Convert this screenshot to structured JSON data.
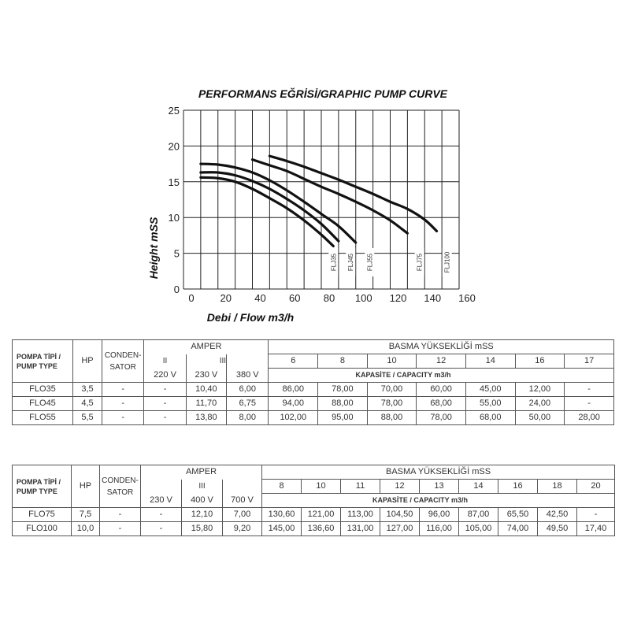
{
  "chart_data": {
    "type": "line",
    "title": "PERFORMANS EĞRİSİ/GRAPHIC PUMP CURVE",
    "xlabel": "Debi / Flow m3/h",
    "ylabel": "Height mSS",
    "xlim": [
      0,
      160
    ],
    "ylim": [
      0,
      25
    ],
    "xticks": [
      "0",
      "20",
      "40",
      "60",
      "80",
      "100",
      "120",
      "140",
      "160"
    ],
    "yticks": [
      "0",
      "5",
      "10",
      "15",
      "20",
      "25"
    ],
    "grid": true,
    "series": [
      {
        "name": "FLJ35",
        "x": [
          10,
          20,
          30,
          40,
          50,
          60,
          70,
          80,
          87
        ],
        "y": [
          15.6,
          15.5,
          15,
          14,
          12.7,
          11.3,
          9.6,
          7.6,
          6.0
        ]
      },
      {
        "name": "FLJ45",
        "x": [
          10,
          20,
          30,
          40,
          50,
          60,
          70,
          80,
          90
        ],
        "y": [
          16.3,
          16.3,
          15.9,
          15.1,
          14,
          12.6,
          11,
          9.1,
          6.7
        ]
      },
      {
        "name": "FLJ55",
        "x": [
          10,
          20,
          30,
          40,
          50,
          60,
          70,
          80,
          90,
          100
        ],
        "y": [
          17.5,
          17.4,
          17,
          16.3,
          15.2,
          13.8,
          12.2,
          10.5,
          8.8,
          6.5
        ]
      },
      {
        "name": "FLJ75",
        "x": [
          40,
          50,
          60,
          70,
          80,
          90,
          100,
          110,
          120,
          130
        ],
        "y": [
          18.1,
          17.3,
          16.5,
          15.4,
          14.3,
          13.3,
          12.2,
          11,
          9.6,
          7.8
        ]
      },
      {
        "name": "FLJ100",
        "x": [
          50,
          60,
          70,
          80,
          90,
          100,
          110,
          120,
          130,
          140,
          147
        ],
        "y": [
          18.6,
          17.9,
          17.1,
          16.2,
          15.3,
          14.3,
          13.3,
          12.2,
          11.2,
          9.7,
          8.1
        ]
      }
    ],
    "curve_labels": [
      "FLJ35",
      "FLJ45",
      "FLJ55",
      "FLJ75",
      "FLJ100"
    ],
    "label_x": [
      87,
      97,
      108,
      137,
      153
    ]
  },
  "table1": {
    "pump_type": [
      "POMPA TİPİ /",
      "PUMP TYPE"
    ],
    "hp": "HP",
    "condensator": [
      "CONDEN-",
      "SATOR"
    ],
    "amper": "AMPER",
    "phase2": "II",
    "phase3": "III",
    "v220": "220 V",
    "v230": "230 V",
    "v380": "380 V",
    "basma": "BASMA YÜKSEKLİĞİ mSS",
    "heights": [
      "6",
      "8",
      "10",
      "12",
      "14",
      "16",
      "17"
    ],
    "capacity": "KAPASİTE  / CAPACITY m3/h",
    "rows": [
      {
        "type": "FLO35",
        "hp": "3,5",
        "cond": "-",
        "a220": "-",
        "a230": "10,40",
        "a380": "6,00",
        "caps": [
          "86,00",
          "78,00",
          "70,00",
          "60,00",
          "45,00",
          "12,00",
          "-"
        ]
      },
      {
        "type": "FLO45",
        "hp": "4,5",
        "cond": "-",
        "a220": "-",
        "a230": "11,70",
        "a380": "6,75",
        "caps": [
          "94,00",
          "88,00",
          "78,00",
          "68,00",
          "55,00",
          "24,00",
          "-"
        ]
      },
      {
        "type": "FLO55",
        "hp": "5,5",
        "cond": "-",
        "a220": "-",
        "a230": "13,80",
        "a380": "8,00",
        "caps": [
          "102,00",
          "95,00",
          "88,00",
          "78,00",
          "68,00",
          "50,00",
          "28,00"
        ]
      }
    ]
  },
  "table2": {
    "pump_type": [
      "POMPA TİPİ /",
      "PUMP TYPE"
    ],
    "hp": "HP",
    "condensator": [
      "CONDEN-",
      "SATOR"
    ],
    "amper": "AMPER",
    "phase3": "III",
    "v230": "230 V",
    "v400": "400 V",
    "v700": "700 V",
    "basma": "BASMA YÜKSEKLİĞİ mSS",
    "heights": [
      "8",
      "10",
      "11",
      "12",
      "13",
      "14",
      "16",
      "18",
      "20"
    ],
    "capacity": "KAPASİTE  / CAPACITY m3/h",
    "rows": [
      {
        "type": "FLO75",
        "hp": "7,5",
        "cond": "-",
        "a230": "-",
        "a400": "12,10",
        "a700": "7,00",
        "caps": [
          "130,60",
          "121,00",
          "113,00",
          "104,50",
          "96,00",
          "87,00",
          "65,50",
          "42,50",
          "-"
        ]
      },
      {
        "type": "FLO100",
        "hp": "10,0",
        "cond": "-",
        "a230": "-",
        "a400": "15,80",
        "a700": "9,20",
        "caps": [
          "145,00",
          "136,60",
          "131,00",
          "127,00",
          "116,00",
          "105,00",
          "74,00",
          "49,50",
          "17,40"
        ]
      }
    ]
  }
}
